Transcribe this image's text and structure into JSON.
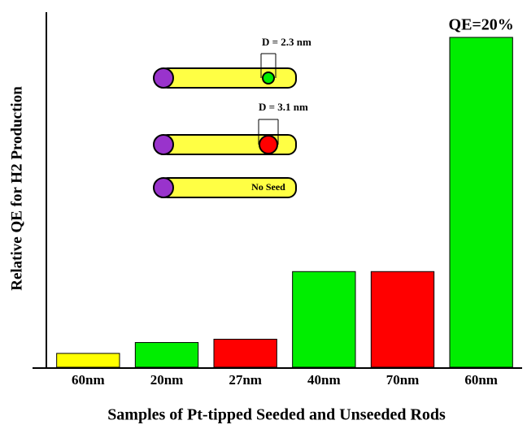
{
  "chart_data": {
    "type": "bar",
    "x_label": "Samples of Pt-tipped Seeded and Unseeded Rods",
    "y_label": "Relative QE for H2 Production",
    "categories": [
      "60nm",
      "20nm",
      "27nm",
      "40nm",
      "70nm",
      "60nm"
    ],
    "values": [
      0.84,
      1.5,
      1.7,
      5.8,
      5.8,
      20
    ],
    "value_labels": [
      null,
      null,
      null,
      null,
      null,
      "QE=20%"
    ],
    "colors": [
      "#ffff00",
      "#00ee00",
      "#ff0000",
      "#00ee00",
      "#ff0000",
      "#00ee00"
    ],
    "ylim": [
      0,
      20
    ],
    "annotations": [
      "D = 2.3 nm",
      "D = 3.1 nm",
      "No Seed"
    ]
  }
}
